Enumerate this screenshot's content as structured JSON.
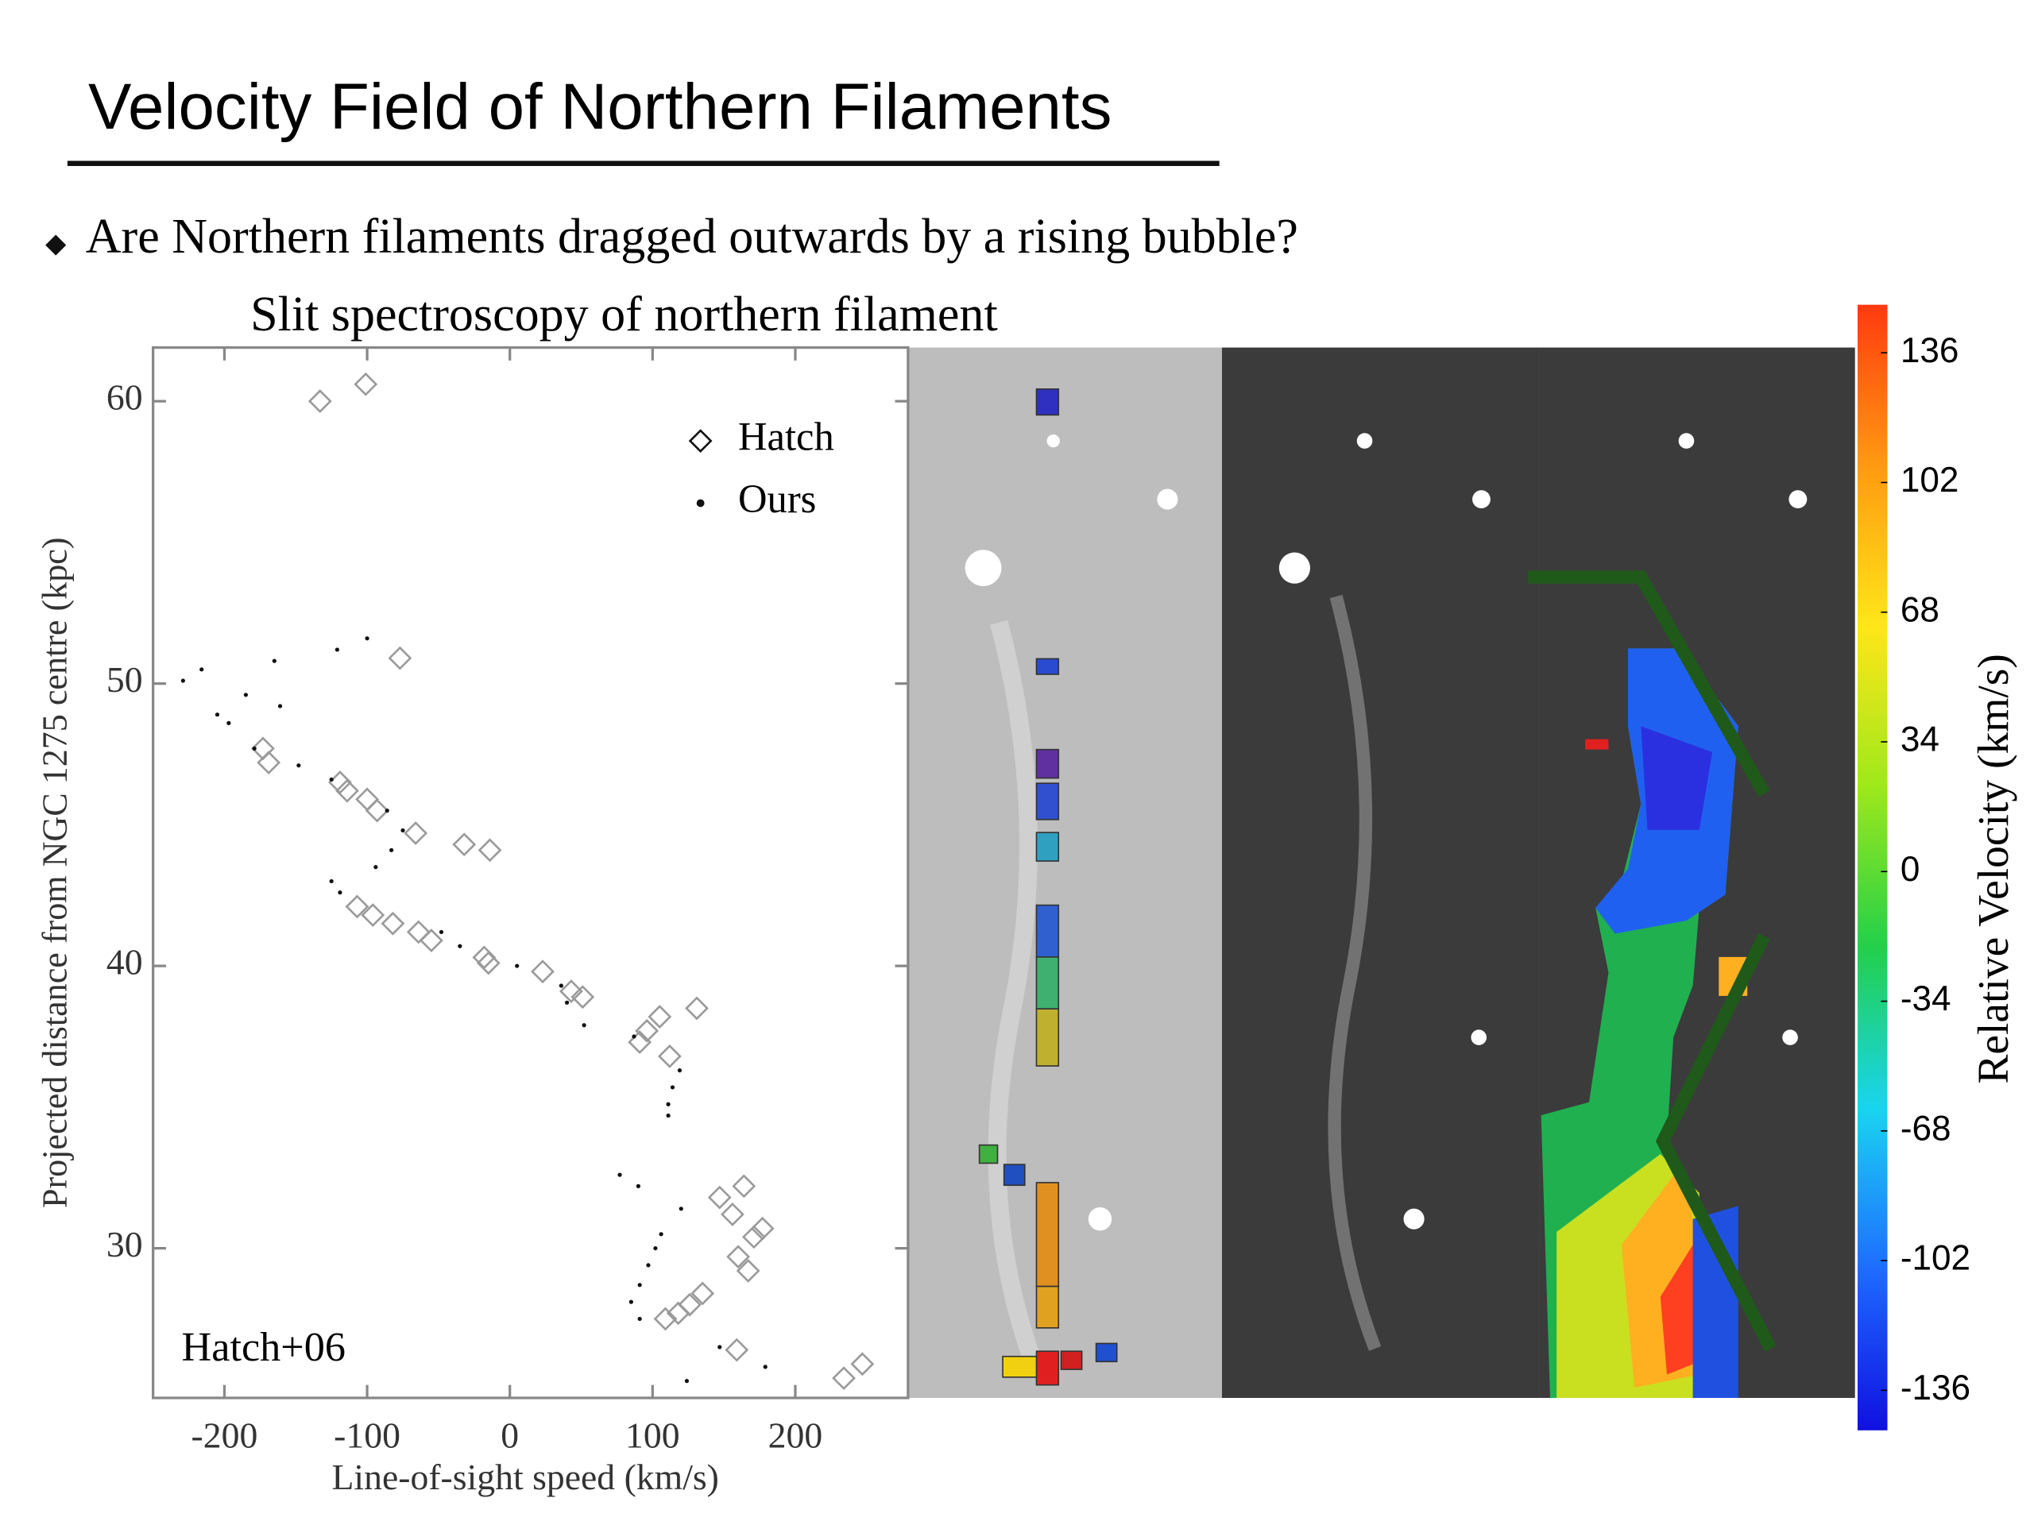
{
  "title": "Velocity Field of Northern Filaments",
  "bullet": "Are Northern filaments dragged outwards by a rising bubble?",
  "chart_data": {
    "type": "scatter",
    "title": "Slit spectroscopy of northern filament",
    "x_label": "Line-of-sight speed (km/s)",
    "y_label": "Projected distance from NGC 1275 centre (kpc)",
    "annotation": "Hatch+06",
    "xlim": [
      -250,
      279
    ],
    "ylim": [
      24.7,
      61.9
    ],
    "xticks": [
      -200,
      -100,
      0,
      100,
      200
    ],
    "yticks": [
      30,
      40,
      50,
      60
    ],
    "legend": "upper right",
    "series": [
      {
        "name": "Hatch",
        "marker": "diamond",
        "color": "#9a9a9a",
        "x": [
          -133,
          -101,
          -77,
          -173,
          -169,
          -119,
          -114,
          -100,
          -93,
          -66,
          -32,
          -14,
          -107,
          -96,
          -82,
          -64,
          -55,
          -18,
          -15,
          23,
          43,
          51,
          131,
          105,
          96,
          91,
          112,
          147,
          164,
          156,
          177,
          171,
          160,
          167,
          135,
          126,
          118,
          109,
          159,
          234,
          247
        ],
        "values": [
          60,
          60.6,
          50.9,
          47.7,
          47.2,
          46.5,
          46.2,
          45.9,
          45.5,
          44.7,
          44.3,
          44.1,
          42.1,
          41.8,
          41.5,
          41.2,
          40.9,
          40.3,
          40.1,
          39.8,
          39.1,
          38.9,
          38.5,
          38.2,
          37.7,
          37.3,
          36.8,
          31.8,
          32.2,
          31.2,
          30.7,
          30.4,
          29.7,
          29.2,
          28.4,
          28.0,
          27.7,
          27.5,
          26.4,
          25.4,
          25.9
        ]
      },
      {
        "name": "Ours",
        "marker": "dot",
        "color": "#111111",
        "x": [
          -229,
          -216,
          -165,
          -121,
          -100,
          -185,
          -161,
          -205,
          -197,
          -179,
          -148,
          -125,
          -86,
          -75,
          -83,
          -94,
          -125,
          -119,
          -48,
          -35,
          5,
          36,
          40,
          52,
          87,
          119,
          114,
          111,
          111,
          77,
          90,
          120,
          106,
          102,
          97,
          91,
          85,
          91,
          124,
          179,
          147
        ],
        "values": [
          50.1,
          50.5,
          50.8,
          51.2,
          51.6,
          49.6,
          49.2,
          48.9,
          48.6,
          47.7,
          47.1,
          46.6,
          45.5,
          44.8,
          44.1,
          43.5,
          43.0,
          42.6,
          41.2,
          40.7,
          40.0,
          39.3,
          38.7,
          37.9,
          37.5,
          36.3,
          35.7,
          35.1,
          34.7,
          32.6,
          32.2,
          31.4,
          30.5,
          30.0,
          29.4,
          28.7,
          28.1,
          27.5,
          25.3,
          25.8,
          26.5
        ]
      }
    ]
  },
  "colorbar": {
    "label": "Relative Velocity (km/s)",
    "lim": [
      -146.5,
      148.6
    ],
    "ticks": [
      136,
      102,
      68,
      34,
      0,
      -34,
      -68,
      -102,
      -136
    ],
    "colormap": [
      "#1010e0",
      "#1e6cff",
      "#19d4f0",
      "#22d04a",
      "#9ee81a",
      "#ffe619",
      "#ff9a10",
      "#ff3a10"
    ]
  }
}
